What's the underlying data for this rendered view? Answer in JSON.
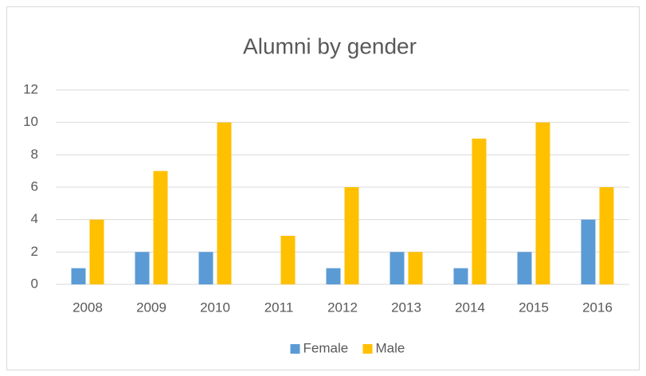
{
  "chart_data": {
    "type": "bar",
    "title": "Alumni by gender",
    "categories": [
      "2008",
      "2009",
      "2010",
      "2011",
      "2012",
      "2013",
      "2014",
      "2015",
      "2016"
    ],
    "series": [
      {
        "name": "Female",
        "color": "#5b9bd5",
        "values": [
          1,
          2,
          2,
          0,
          1,
          2,
          1,
          2,
          4
        ]
      },
      {
        "name": "Male",
        "color": "#ffc000",
        "values": [
          4,
          7,
          10,
          3,
          6,
          2,
          9,
          10,
          6
        ]
      }
    ],
    "ylim": [
      0,
      12
    ],
    "yticks": [
      0,
      2,
      4,
      6,
      8,
      10,
      12
    ],
    "grid": true,
    "legend": "bottom"
  }
}
